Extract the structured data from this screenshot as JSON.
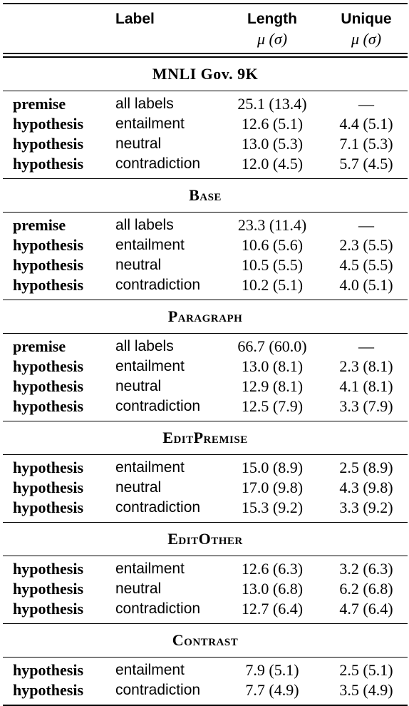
{
  "header": {
    "label": "Label",
    "length": "Length",
    "length_sub": "μ (σ)",
    "unique": "Unique",
    "unique_sub": "μ (σ)"
  },
  "sections": [
    {
      "title": "MNLI Gov. 9K",
      "rows": [
        {
          "field": "premise",
          "label": "all labels",
          "length": "25.1 (13.4)",
          "unique": "—"
        },
        {
          "field": "hypothesis",
          "label": "entailment",
          "length": "12.6 (5.1)",
          "unique": "4.4 (5.1)"
        },
        {
          "field": "hypothesis",
          "label": "neutral",
          "length": "13.0 (5.3)",
          "unique": "7.1 (5.3)"
        },
        {
          "field": "hypothesis",
          "label": "contradiction",
          "length": "12.0 (4.5)",
          "unique": "5.7 (4.5)"
        }
      ]
    },
    {
      "title": "Base",
      "rows": [
        {
          "field": "premise",
          "label": "all labels",
          "length": "23.3 (11.4)",
          "unique": "—"
        },
        {
          "field": "hypothesis",
          "label": "entailment",
          "length": "10.6 (5.6)",
          "unique": "2.3 (5.5)"
        },
        {
          "field": "hypothesis",
          "label": "neutral",
          "length": "10.5 (5.5)",
          "unique": "4.5 (5.5)"
        },
        {
          "field": "hypothesis",
          "label": "contradiction",
          "length": "10.2 (5.1)",
          "unique": "4.0 (5.1)"
        }
      ]
    },
    {
      "title": "Paragraph",
      "rows": [
        {
          "field": "premise",
          "label": "all labels",
          "length": "66.7 (60.0)",
          "unique": "—"
        },
        {
          "field": "hypothesis",
          "label": "entailment",
          "length": "13.0 (8.1)",
          "unique": "2.3 (8.1)"
        },
        {
          "field": "hypothesis",
          "label": "neutral",
          "length": "12.9 (8.1)",
          "unique": "4.1 (8.1)"
        },
        {
          "field": "hypothesis",
          "label": "contradiction",
          "length": "12.5 (7.9)",
          "unique": "3.3 (7.9)"
        }
      ]
    },
    {
      "title": "EditPremise",
      "rows": [
        {
          "field": "hypothesis",
          "label": "entailment",
          "length": "15.0 (8.9)",
          "unique": "2.5 (8.9)"
        },
        {
          "field": "hypothesis",
          "label": "neutral",
          "length": "17.0 (9.8)",
          "unique": "4.3 (9.8)"
        },
        {
          "field": "hypothesis",
          "label": "contradiction",
          "length": "15.3 (9.2)",
          "unique": "3.3 (9.2)"
        }
      ]
    },
    {
      "title": "EditOther",
      "rows": [
        {
          "field": "hypothesis",
          "label": "entailment",
          "length": "12.6 (6.3)",
          "unique": "3.2 (6.3)"
        },
        {
          "field": "hypothesis",
          "label": "neutral",
          "length": "13.0 (6.8)",
          "unique": "6.2 (6.8)"
        },
        {
          "field": "hypothesis",
          "label": "contradiction",
          "length": "12.7 (6.4)",
          "unique": "4.7 (6.4)"
        }
      ]
    },
    {
      "title": "Contrast",
      "rows": [
        {
          "field": "hypothesis",
          "label": "entailment",
          "length": "7.9 (5.1)",
          "unique": "2.5 (5.1)"
        },
        {
          "field": "hypothesis",
          "label": "contradiction",
          "length": "7.7 (4.9)",
          "unique": "3.5 (4.9)"
        }
      ]
    }
  ]
}
